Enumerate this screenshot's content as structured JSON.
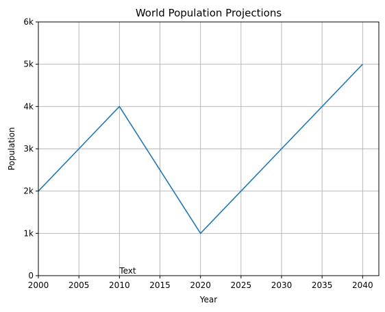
{
  "chart_data": {
    "type": "line",
    "title": "World Population Projections",
    "xlabel": "Year",
    "ylabel": "Population",
    "x": [
      2000,
      2010,
      2020,
      2040
    ],
    "series": [
      {
        "values": [
          2000,
          4000,
          1000,
          5000
        ],
        "color": "#1f77b4"
      }
    ],
    "xlim": [
      2000,
      2042
    ],
    "ylim": [
      0,
      6000
    ],
    "xticks": [
      2000,
      2005,
      2010,
      2015,
      2020,
      2025,
      2030,
      2035,
      2040
    ],
    "xtick_labels": [
      "2000",
      "2005",
      "2010",
      "2015",
      "2020",
      "2025",
      "2030",
      "2035",
      "2040"
    ],
    "yticks": [
      0,
      1000,
      2000,
      3000,
      4000,
      5000,
      6000
    ],
    "ytick_labels": [
      "0",
      "1k",
      "2k",
      "3k",
      "4k",
      "5k",
      "6k"
    ],
    "grid": true,
    "annotations": [
      {
        "text": "Text",
        "x": 2010,
        "y": 0
      }
    ]
  }
}
